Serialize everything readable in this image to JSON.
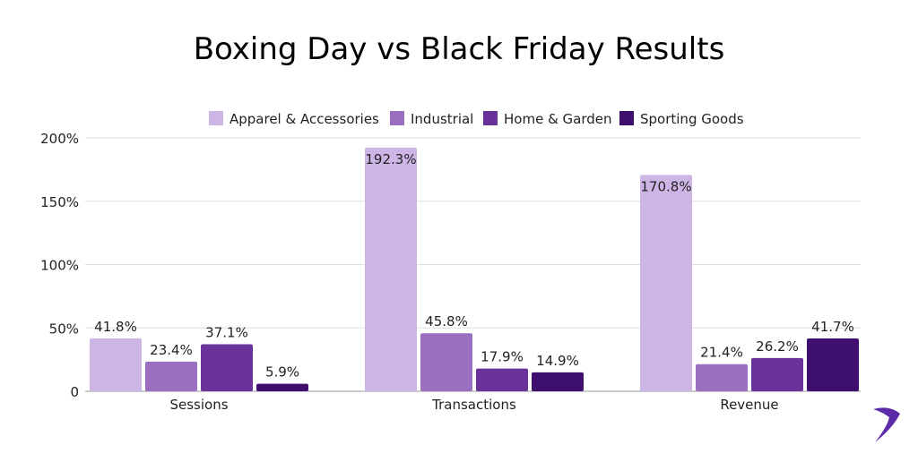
{
  "chart_data": {
    "type": "bar",
    "title": "Boxing Day vs Black Friday Results",
    "categories": [
      "Sessions",
      "Transactions",
      "Revenue"
    ],
    "series": [
      {
        "name": "Apparel & Accessories",
        "color": "#CDB5E6",
        "values": [
          41.8,
          192.3,
          170.8
        ],
        "labels": [
          "41.8%",
          "192.3%",
          "170.8%"
        ]
      },
      {
        "name": "Industrial",
        "color": "#9A6FBF",
        "values": [
          23.4,
          45.8,
          21.4
        ],
        "labels": [
          "23.4%",
          "45.8%",
          "21.4%"
        ]
      },
      {
        "name": "Home & Garden",
        "color": "#6A3399",
        "values": [
          37.1,
          17.9,
          26.2
        ],
        "labels": [
          "37.1%",
          "17.9%",
          "26.2%"
        ]
      },
      {
        "name": "Sporting Goods",
        "color": "#3F0F6E",
        "values": [
          5.9,
          14.9,
          41.7
        ],
        "labels": [
          "5.9%",
          "14.9%",
          "41.7%"
        ]
      }
    ],
    "yticks": [
      0,
      50,
      100,
      150,
      200
    ],
    "ytick_labels": [
      "0",
      "50%",
      "100%",
      "150%",
      "200%"
    ],
    "ylim": [
      0,
      200
    ],
    "grid": true,
    "legend": "top-center",
    "xlabel": "",
    "ylabel": ""
  },
  "logo": {
    "name": "boomerang-logo",
    "color": "#5B2BA8"
  }
}
